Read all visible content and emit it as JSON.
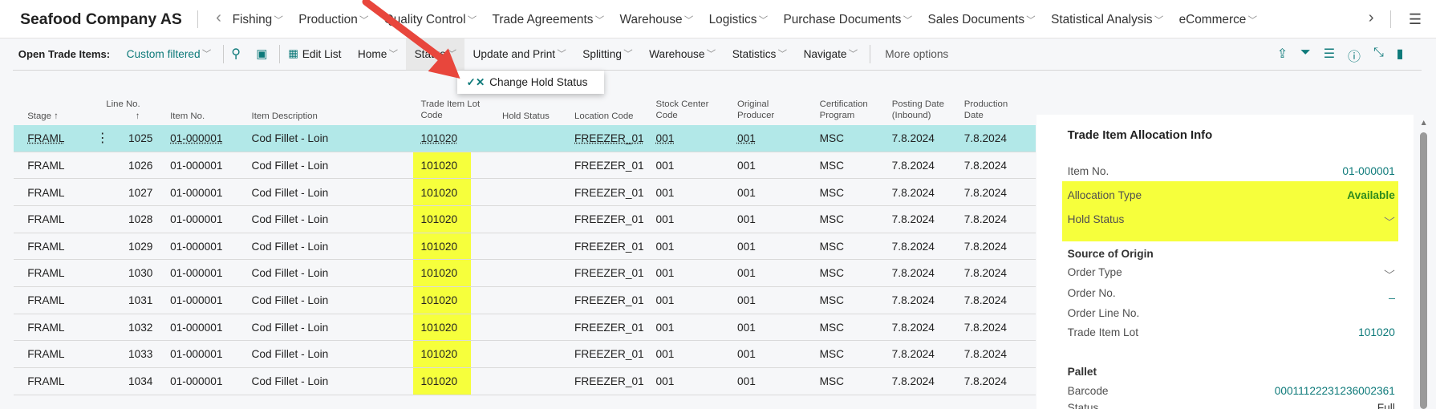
{
  "app": {
    "company": "Seafood Company AS",
    "menu_icon": "hamburger-icon"
  },
  "nav": [
    "Fishing",
    "Production",
    "Quality Control",
    "Trade Agreements",
    "Warehouse",
    "Logistics",
    "Purchase Documents",
    "Sales Documents",
    "Statistical Analysis",
    "eCommerce"
  ],
  "command_bar": {
    "page_title": "Open Trade Items:",
    "filter": "Custom filtered",
    "edit_list": "Edit List",
    "home": "Home",
    "status": "Status",
    "update_print": "Update and Print",
    "splitting": "Splitting",
    "warehouse": "Warehouse",
    "statistics": "Statistics",
    "navigate": "Navigate",
    "more": "More options"
  },
  "status_menu": {
    "item": "Change Hold Status"
  },
  "columns": {
    "stage": "Stage ↑",
    "line_no": "Line No.",
    "line_no_sort": "↑",
    "item_no": "Item No.",
    "desc": "Item Description",
    "lot1": "Trade Item Lot",
    "lot2": "Code",
    "hold": "Hold Status",
    "loc": "Location Code",
    "stock1": "Stock Center",
    "stock2": "Code",
    "orig1": "Original",
    "orig2": "Producer",
    "cert1": "Certification",
    "cert2": "Program",
    "post1": "Posting Date",
    "post2": "(Inbound)",
    "prod1": "Production",
    "prod2": "Date"
  },
  "rows": [
    {
      "stage": "FRAML",
      "line": "1025",
      "item": "01-000001",
      "desc": "Cod Fillet - Loin",
      "lot": "101020",
      "hold": "",
      "loc": "FREEZER_01",
      "stock": "001",
      "orig": "001",
      "cert": "MSC",
      "post": "7.8.2024",
      "prod": "7.8.2024"
    },
    {
      "stage": "FRAML",
      "line": "1026",
      "item": "01-000001",
      "desc": "Cod Fillet - Loin",
      "lot": "101020",
      "hold": "",
      "loc": "FREEZER_01",
      "stock": "001",
      "orig": "001",
      "cert": "MSC",
      "post": "7.8.2024",
      "prod": "7.8.2024"
    },
    {
      "stage": "FRAML",
      "line": "1027",
      "item": "01-000001",
      "desc": "Cod Fillet - Loin",
      "lot": "101020",
      "hold": "",
      "loc": "FREEZER_01",
      "stock": "001",
      "orig": "001",
      "cert": "MSC",
      "post": "7.8.2024",
      "prod": "7.8.2024"
    },
    {
      "stage": "FRAML",
      "line": "1028",
      "item": "01-000001",
      "desc": "Cod Fillet - Loin",
      "lot": "101020",
      "hold": "",
      "loc": "FREEZER_01",
      "stock": "001",
      "orig": "001",
      "cert": "MSC",
      "post": "7.8.2024",
      "prod": "7.8.2024"
    },
    {
      "stage": "FRAML",
      "line": "1029",
      "item": "01-000001",
      "desc": "Cod Fillet - Loin",
      "lot": "101020",
      "hold": "",
      "loc": "FREEZER_01",
      "stock": "001",
      "orig": "001",
      "cert": "MSC",
      "post": "7.8.2024",
      "prod": "7.8.2024"
    },
    {
      "stage": "FRAML",
      "line": "1030",
      "item": "01-000001",
      "desc": "Cod Fillet - Loin",
      "lot": "101020",
      "hold": "",
      "loc": "FREEZER_01",
      "stock": "001",
      "orig": "001",
      "cert": "MSC",
      "post": "7.8.2024",
      "prod": "7.8.2024"
    },
    {
      "stage": "FRAML",
      "line": "1031",
      "item": "01-000001",
      "desc": "Cod Fillet - Loin",
      "lot": "101020",
      "hold": "",
      "loc": "FREEZER_01",
      "stock": "001",
      "orig": "001",
      "cert": "MSC",
      "post": "7.8.2024",
      "prod": "7.8.2024"
    },
    {
      "stage": "FRAML",
      "line": "1032",
      "item": "01-000001",
      "desc": "Cod Fillet - Loin",
      "lot": "101020",
      "hold": "",
      "loc": "FREEZER_01",
      "stock": "001",
      "orig": "001",
      "cert": "MSC",
      "post": "7.8.2024",
      "prod": "7.8.2024"
    },
    {
      "stage": "FRAML",
      "line": "1033",
      "item": "01-000001",
      "desc": "Cod Fillet - Loin",
      "lot": "101020",
      "hold": "",
      "loc": "FREEZER_01",
      "stock": "001",
      "orig": "001",
      "cert": "MSC",
      "post": "7.8.2024",
      "prod": "7.8.2024"
    },
    {
      "stage": "FRAML",
      "line": "1034",
      "item": "01-000001",
      "desc": "Cod Fillet - Loin",
      "lot": "101020",
      "hold": "",
      "loc": "FREEZER_01",
      "stock": "001",
      "orig": "001",
      "cert": "MSC",
      "post": "7.8.2024",
      "prod": "7.8.2024"
    }
  ],
  "factbox": {
    "title": "Trade Item Allocation Info",
    "item_no_label": "Item No.",
    "item_no": "01-000001",
    "alloc_label": "Allocation Type",
    "alloc": "Available",
    "hold_label": "Hold Status",
    "source_header": "Source of Origin",
    "order_type_label": "Order Type",
    "order_no_label": "Order No.",
    "order_no": "_",
    "order_line_label": "Order Line No.",
    "lot_label": "Trade Item Lot",
    "lot": "101020",
    "pallet_header": "Pallet",
    "barcode_label": "Barcode",
    "barcode": "00011122231236002361",
    "status_label": "Status",
    "status": "Full"
  },
  "colors": {
    "accent": "#0e7a7a",
    "selected_row": "#b2e8e8",
    "highlight": "#f6ff3c",
    "annotation_arrow": "#e8463c",
    "available": "#2e8b1e"
  }
}
